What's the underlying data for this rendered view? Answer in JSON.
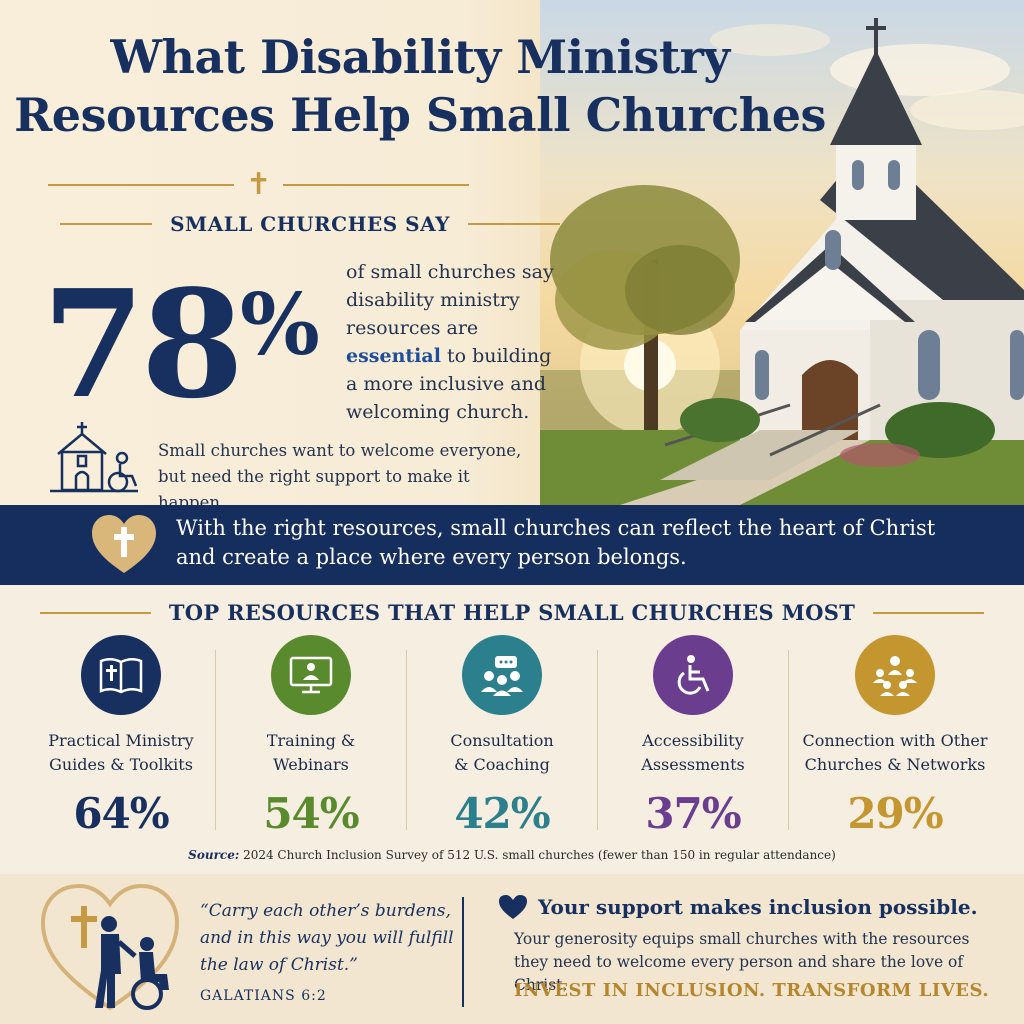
{
  "title": {
    "line1": "What Disability Ministry",
    "line2": "Resources Help Small Churches"
  },
  "hero": {
    "small_churches_say": "SMALL CHURCHES SAY",
    "stat_number": "78",
    "stat_unit": "%",
    "desc_pre": "of small churches say disability ministry resources are ",
    "desc_emphasis": "essential",
    "desc_post": " to building a more inclusive and welcoming church.",
    "sub_line1": "Small churches want to welcome everyone,",
    "sub_line2": "but need the right support to make it happen."
  },
  "banner": {
    "line1": "With the right resources, small churches can reflect the heart of Christ",
    "line2": "and create a place where every person belongs."
  },
  "resources": {
    "heading": "TOP RESOURCES THAT HELP SMALL CHURCHES MOST",
    "items": [
      {
        "line1": "Practical Ministry",
        "line2": "Guides & Toolkits",
        "value": "64%",
        "color": "#17305f",
        "icon": "bible-icon"
      },
      {
        "line1": "Training &",
        "line2": "Webinars",
        "value": "54%",
        "color": "#5a8a2e",
        "icon": "webinar-icon"
      },
      {
        "line1": "Consultation",
        "line2": "& Coaching",
        "value": "42%",
        "color": "#2c7f8c",
        "icon": "coaching-icon"
      },
      {
        "line1": "Accessibility",
        "line2": "Assessments",
        "value": "37%",
        "color": "#6a3d8f",
        "icon": "wheelchair-icon"
      },
      {
        "line1": "Connection with Other",
        "line2": "Churches & Networks",
        "value": "29%",
        "color": "#c4962f",
        "icon": "network-icon"
      }
    ]
  },
  "source": {
    "label": "Source:",
    "text": " 2024 Church Inclusion Survey of 512 U.S. small churches (fewer than 150 in regular attendance)"
  },
  "footer": {
    "quote_line1": "“Carry each other’s burdens,",
    "quote_line2": "and in this way you will fulfill",
    "quote_line3": "the law of Christ.”",
    "reference": "GALATIANS 6:2",
    "support_heading": "Your support makes inclusion possible.",
    "support_line1": "Your generosity equips small churches with the resources",
    "support_line2": "they need to welcome every person and share the love of Christ.",
    "cta": "INVEST IN INCLUSION. TRANSFORM LIVES."
  }
}
